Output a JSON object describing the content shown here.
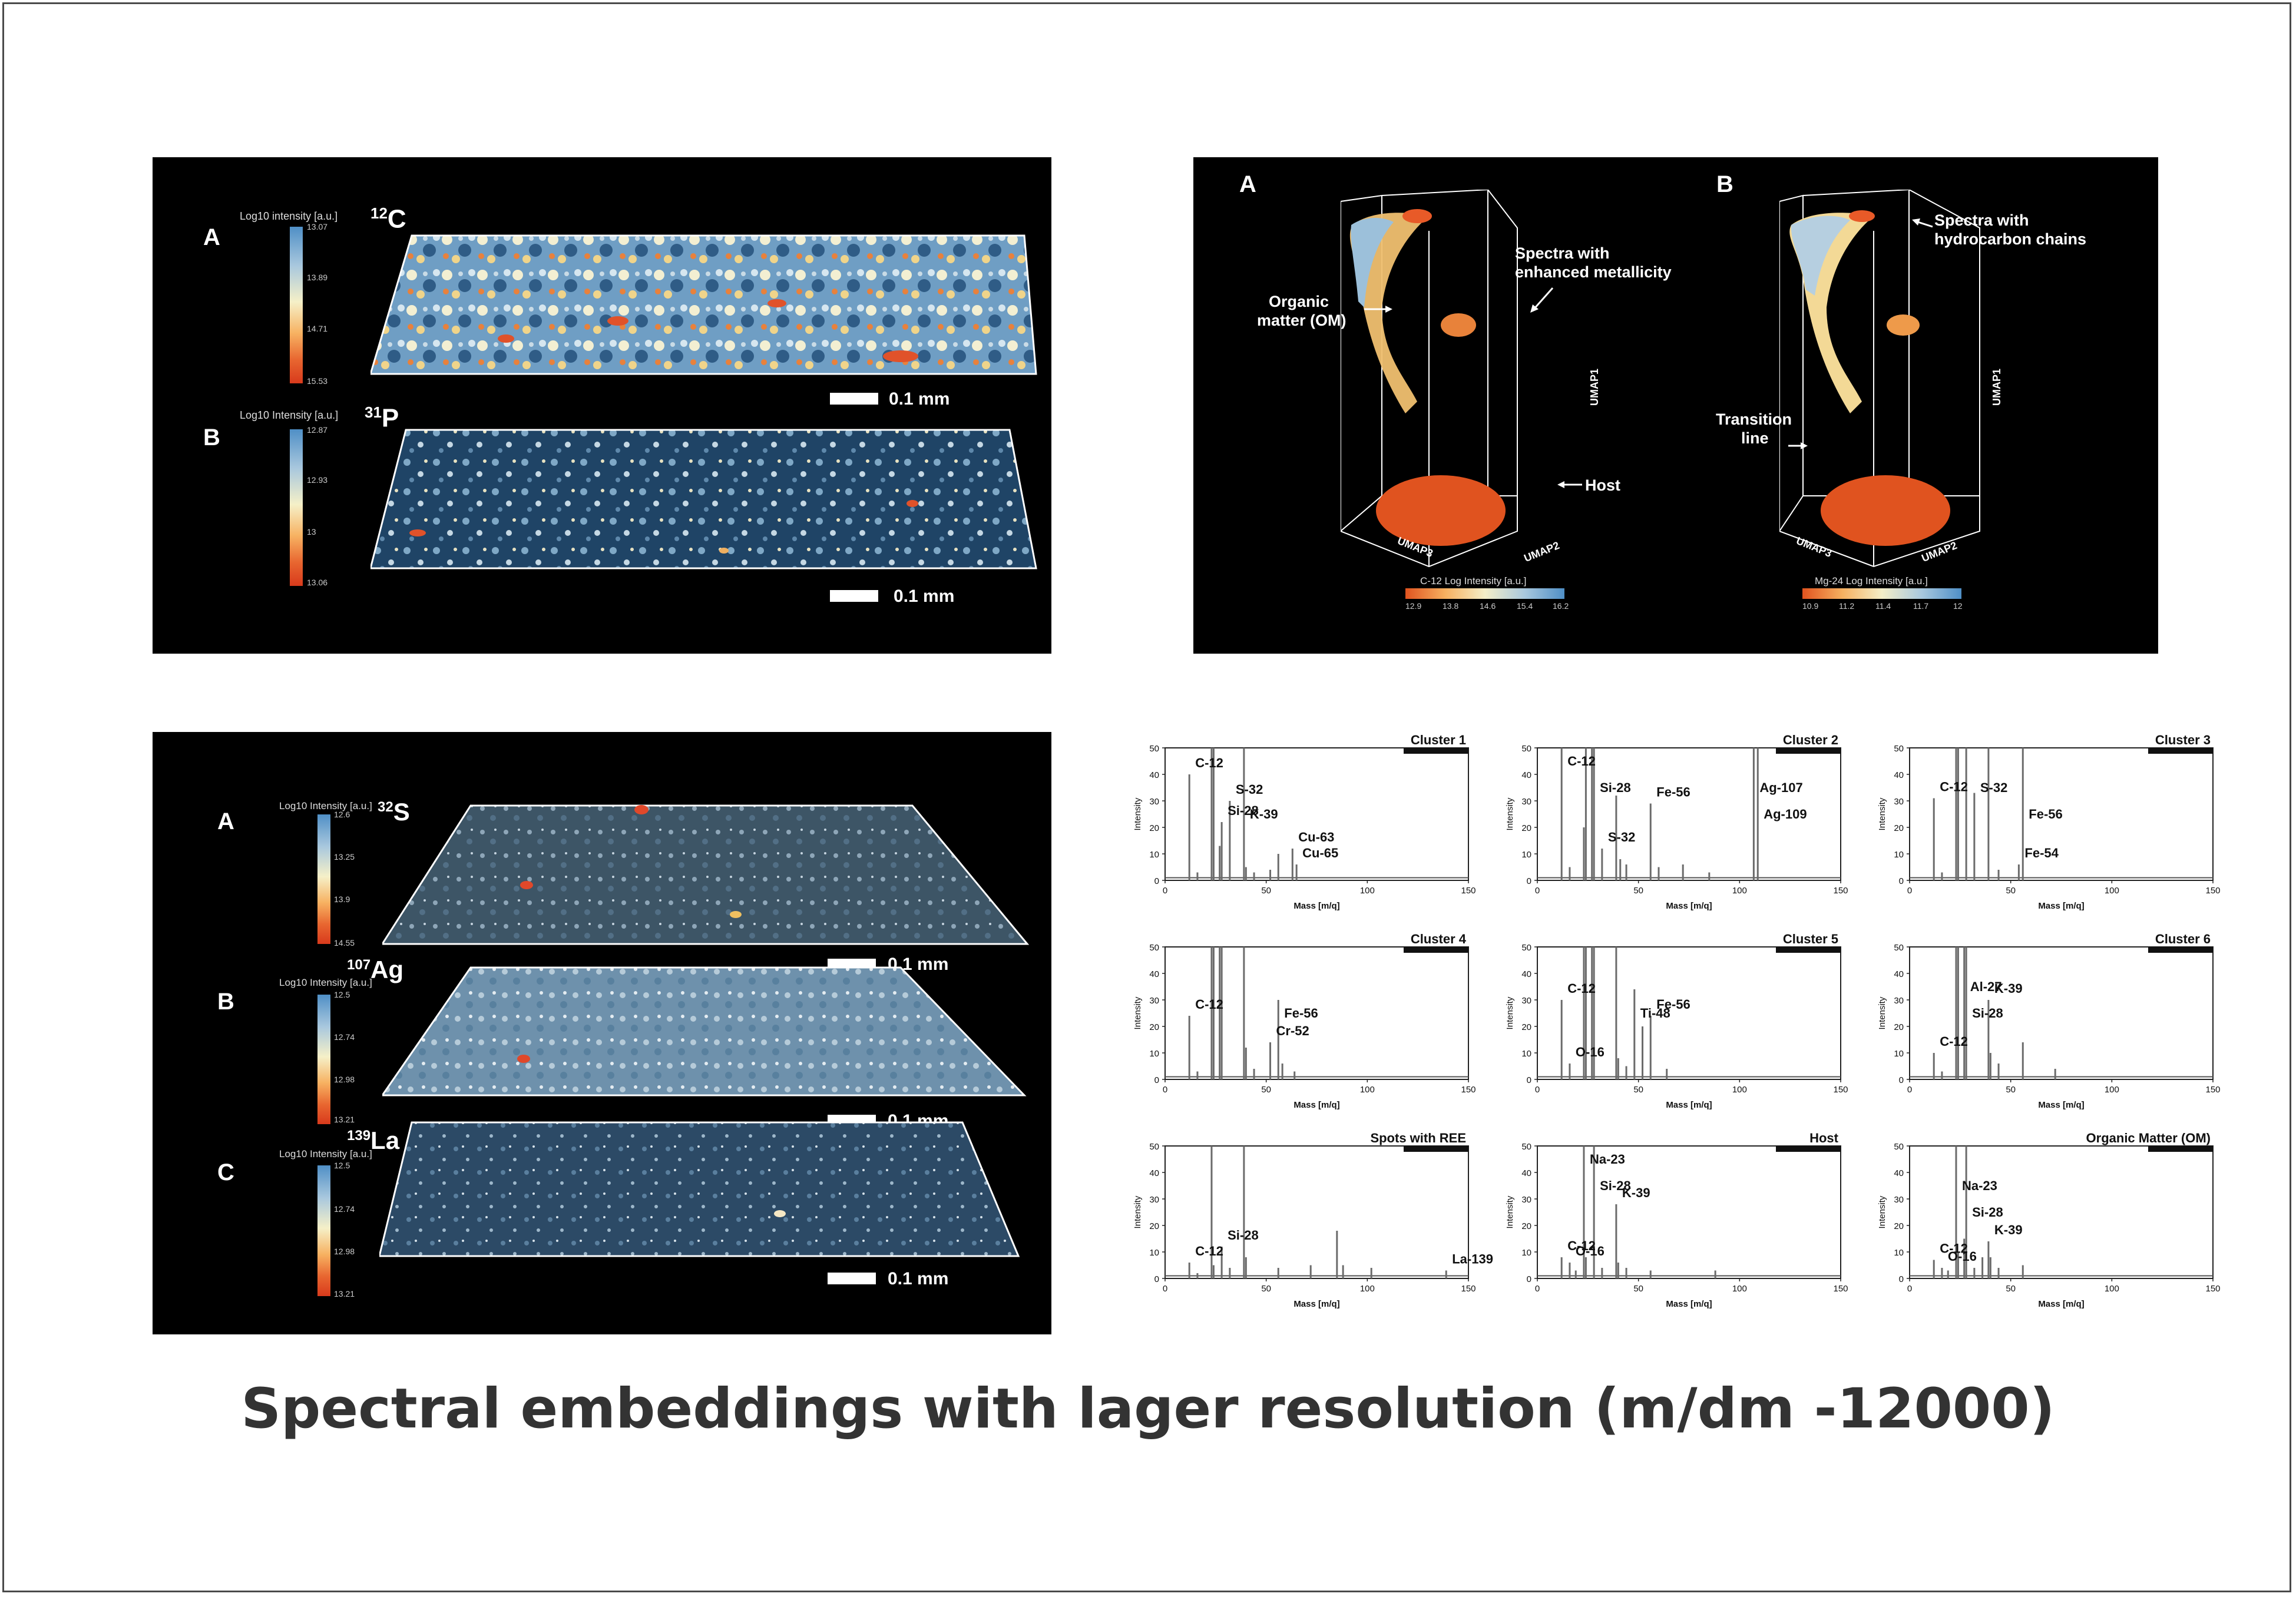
{
  "caption": "Spectral embeddings with lager resolution (m/dm -12000)",
  "panel_tl": {
    "rows": [
      {
        "letter": "A",
        "isotope_sup": "12",
        "isotope": "C",
        "cb_title": "Log10 intensity [a.u.]",
        "ticks": [
          "13.07",
          "13.89",
          "14.71",
          "15.53"
        ],
        "scale": "0.1 mm"
      },
      {
        "letter": "B",
        "isotope_sup": "31",
        "isotope": "P",
        "cb_title": "Log10 Intensity [a.u.]",
        "ticks": [
          "12.87",
          "12.93",
          "13",
          "13.06"
        ],
        "scale": "0.1 mm"
      }
    ]
  },
  "panel_tr": {
    "views": [
      {
        "letter": "A",
        "ann": [
          "Spectra with",
          "enhanced metallicity",
          "Organic",
          "matter (OM)",
          "Host"
        ],
        "axes": [
          "UMAP1",
          "UMAP2",
          "UMAP3"
        ],
        "cb_title": "C-12 Log Intensity [a.u.]",
        "ticks": [
          "12.9",
          "13.8",
          "14.6",
          "15.4",
          "16.2"
        ]
      },
      {
        "letter": "B",
        "ann": [
          "Spectra with",
          "hydrocarbon chains",
          "Transition",
          "line"
        ],
        "axes": [
          "UMAP1",
          "UMAP2",
          "UMAP3"
        ],
        "cb_title": "Mg-24 Log Intensity [a.u.]",
        "ticks": [
          "10.9",
          "11.2",
          "11.4",
          "11.7",
          "12"
        ]
      }
    ]
  },
  "panel_bl": {
    "rows": [
      {
        "letter": "A",
        "isotope_sup": "32",
        "isotope": "S",
        "cb_title": "Log10 Intensity [a.u.]",
        "ticks": [
          "12.6",
          "13.25",
          "13.9",
          "14.55"
        ],
        "scale": "0.1 mm"
      },
      {
        "letter": "B",
        "isotope_sup": "107",
        "isotope": "Ag",
        "cb_title": "Log10 Intensity [a.u.]",
        "ticks": [
          "12.5",
          "12.74",
          "12.98",
          "13.21"
        ],
        "scale": "0.1 mm"
      },
      {
        "letter": "C",
        "isotope_sup": "139",
        "isotope": "La",
        "cb_title": "Log10 Intensity [a.u.]",
        "ticks": [
          "12.5",
          "12.74",
          "12.98",
          "13.21"
        ],
        "scale": "0.1 mm"
      }
    ]
  },
  "chart_data": [
    {
      "type": "bar",
      "title": "Cluster 1",
      "xlabel": "Mass [m/q]",
      "ylabel": "Intensity",
      "xlim": [
        0,
        150
      ],
      "ylim": [
        0,
        50
      ],
      "x": [
        12,
        16,
        23,
        24,
        27,
        28,
        32,
        39,
        40,
        44,
        52,
        56,
        63,
        65
      ],
      "values": [
        40,
        3,
        50,
        50,
        13,
        22,
        30,
        50,
        5,
        3,
        4,
        10,
        12,
        6
      ],
      "labels": [
        [
          "C-12",
          12
        ],
        [
          "S-32",
          32
        ],
        [
          "K-39",
          39
        ],
        [
          "Si-28",
          28
        ],
        [
          "Cu-63",
          63
        ],
        [
          "Cu-65",
          65
        ]
      ]
    },
    {
      "type": "bar",
      "title": "Cluster 2",
      "xlabel": "Mass [m/q]",
      "ylabel": "Intensity",
      "xlim": [
        0,
        150
      ],
      "ylim": [
        0,
        50
      ],
      "x": [
        12,
        16,
        23,
        24,
        27,
        28,
        32,
        39,
        41,
        44,
        56,
        60,
        72,
        85,
        107,
        109
      ],
      "values": [
        50,
        5,
        20,
        50,
        50,
        50,
        12,
        32,
        8,
        6,
        29,
        5,
        6,
        3,
        50,
        50
      ],
      "labels": [
        [
          "C-12",
          12
        ],
        [
          "Si-28",
          28
        ],
        [
          "S-32",
          32
        ],
        [
          "Fe-56",
          56
        ],
        [
          "Ag-107",
          107
        ],
        [
          "Ag-109",
          109
        ]
      ]
    },
    {
      "type": "bar",
      "title": "Cluster 3",
      "xlabel": "Mass [m/q]",
      "ylabel": "Intensity",
      "xlim": [
        0,
        150
      ],
      "ylim": [
        0,
        50
      ],
      "x": [
        12,
        16,
        23,
        24,
        28,
        32,
        39,
        44,
        54,
        56
      ],
      "values": [
        31,
        3,
        50,
        50,
        50,
        33,
        50,
        4,
        6,
        50
      ],
      "labels": [
        [
          "C-12",
          12
        ],
        [
          "S-32",
          32
        ],
        [
          "Fe-56",
          56
        ],
        [
          "Fe-54",
          54
        ]
      ]
    },
    {
      "type": "bar",
      "title": "Cluster 4",
      "xlabel": "Mass [m/q]",
      "ylabel": "Intensity",
      "xlim": [
        0,
        150
      ],
      "ylim": [
        0,
        50
      ],
      "x": [
        12,
        16,
        23,
        24,
        27,
        28,
        39,
        40,
        44,
        52,
        56,
        58,
        64
      ],
      "values": [
        24,
        3,
        50,
        50,
        50,
        50,
        50,
        12,
        4,
        14,
        30,
        6,
        3
      ],
      "labels": [
        [
          "C-12",
          12
        ],
        [
          "Cr-52",
          52
        ],
        [
          "Fe-56",
          56
        ]
      ]
    },
    {
      "type": "bar",
      "title": "Cluster 5",
      "xlabel": "Mass [m/q]",
      "ylabel": "Intensity",
      "xlim": [
        0,
        150
      ],
      "ylim": [
        0,
        50
      ],
      "x": [
        12,
        16,
        23,
        24,
        27,
        28,
        39,
        40,
        44,
        48,
        52,
        56,
        64
      ],
      "values": [
        30,
        6,
        50,
        50,
        50,
        50,
        50,
        8,
        5,
        34,
        20,
        24,
        4
      ],
      "labels": [
        [
          "C-12",
          12
        ],
        [
          "O-16",
          16
        ],
        [
          "Ti-48",
          48
        ],
        [
          "Fe-56",
          56
        ]
      ]
    },
    {
      "type": "bar",
      "title": "Cluster 6",
      "xlabel": "Mass [m/q]",
      "ylabel": "Intensity",
      "xlim": [
        0,
        150
      ],
      "ylim": [
        0,
        50
      ],
      "x": [
        12,
        16,
        23,
        24,
        27,
        28,
        39,
        40,
        44,
        56,
        72
      ],
      "values": [
        10,
        3,
        50,
        50,
        50,
        50,
        30,
        10,
        6,
        14,
        4
      ],
      "labels": [
        [
          "C-12",
          12
        ],
        [
          "Al-27",
          27
        ],
        [
          "Si-28",
          28
        ],
        [
          "K-39",
          39
        ]
      ]
    },
    {
      "type": "bar",
      "title": "Spots with REE",
      "xlabel": "Mass [m/q]",
      "ylabel": "Intensity",
      "xlim": [
        0,
        150
      ],
      "ylim": [
        0,
        50
      ],
      "x": [
        12,
        16,
        23,
        24,
        28,
        32,
        39,
        40,
        56,
        72,
        85,
        88,
        102,
        139
      ],
      "values": [
        6,
        2,
        50,
        5,
        12,
        4,
        50,
        8,
        4,
        5,
        18,
        5,
        4,
        3
      ],
      "labels": [
        [
          "C-12",
          12
        ],
        [
          "Si-28",
          28
        ],
        [
          "La-139",
          139
        ]
      ]
    },
    {
      "type": "bar",
      "title": "Host",
      "xlabel": "Mass [m/q]",
      "ylabel": "Intensity",
      "xlim": [
        0,
        150
      ],
      "ylim": [
        0,
        50
      ],
      "x": [
        12,
        16,
        19,
        23,
        24,
        28,
        32,
        39,
        40,
        44,
        56,
        88
      ],
      "values": [
        8,
        6,
        3,
        50,
        8,
        50,
        4,
        28,
        6,
        4,
        3,
        3
      ],
      "labels": [
        [
          "Na-23",
          23
        ],
        [
          "Si-28",
          28
        ],
        [
          "C-12",
          12
        ],
        [
          "O-16",
          16
        ],
        [
          "K-39",
          39
        ]
      ]
    },
    {
      "type": "bar",
      "title": "Organic Matter (OM)",
      "xlabel": "Mass [m/q]",
      "ylabel": "Intensity",
      "xlim": [
        0,
        150
      ],
      "ylim": [
        0,
        50
      ],
      "x": [
        12,
        16,
        19,
        23,
        24,
        27,
        28,
        32,
        36,
        39,
        40,
        44,
        56
      ],
      "values": [
        7,
        4,
        3,
        50,
        10,
        15,
        50,
        4,
        8,
        14,
        8,
        4,
        5
      ],
      "labels": [
        [
          "C-12",
          12
        ],
        [
          "Na-23",
          23
        ],
        [
          "Si-28",
          28
        ],
        [
          "K-39",
          39
        ],
        [
          "O-16",
          16
        ]
      ]
    }
  ],
  "chart_common": {
    "yticks": [
      "0",
      "10",
      "20",
      "30",
      "40",
      "50"
    ],
    "xticks": [
      "0",
      "50",
      "100",
      "150"
    ]
  }
}
